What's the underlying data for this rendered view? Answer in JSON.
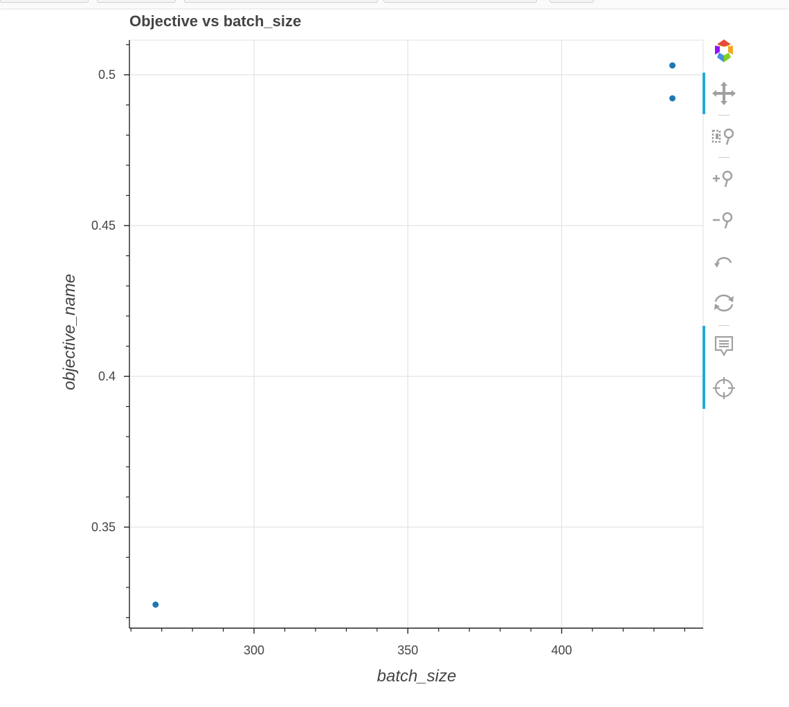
{
  "chart_data": {
    "type": "scatter",
    "title": "Objective vs batch_size",
    "xlabel": "batch_size",
    "ylabel": "objective_name",
    "xlim": [
      259.5,
      446
    ],
    "ylim": [
      0.3165,
      0.5115
    ],
    "x_ticks": [
      300,
      350,
      400
    ],
    "y_ticks": [
      0.35,
      0.4,
      0.45,
      0.5
    ],
    "x_tick_labels": [
      "300",
      "350",
      "400"
    ],
    "y_tick_labels": [
      "0.35",
      "0.4",
      "0.45",
      "0.5"
    ],
    "grid": true,
    "point_color": "#1f77b4",
    "points": [
      {
        "x": 268,
        "y": 0.3243
      },
      {
        "x": 436,
        "y": 0.5031
      },
      {
        "x": 436,
        "y": 0.4922
      }
    ]
  },
  "toolbar": {
    "tools": [
      {
        "name": "bokeh-logo-icon"
      },
      {
        "name": "pan-tool-icon"
      },
      {
        "name": "box-zoom-tool-icon"
      },
      {
        "name": "zoom-in-tool-icon"
      },
      {
        "name": "zoom-out-tool-icon"
      },
      {
        "name": "undo-tool-icon"
      },
      {
        "name": "reset-tool-icon"
      },
      {
        "name": "hover-tool-icon"
      },
      {
        "name": "crosshair-tool-icon"
      }
    ],
    "active_color": "#26a8d9",
    "icon_color": "#a0a0a0"
  }
}
